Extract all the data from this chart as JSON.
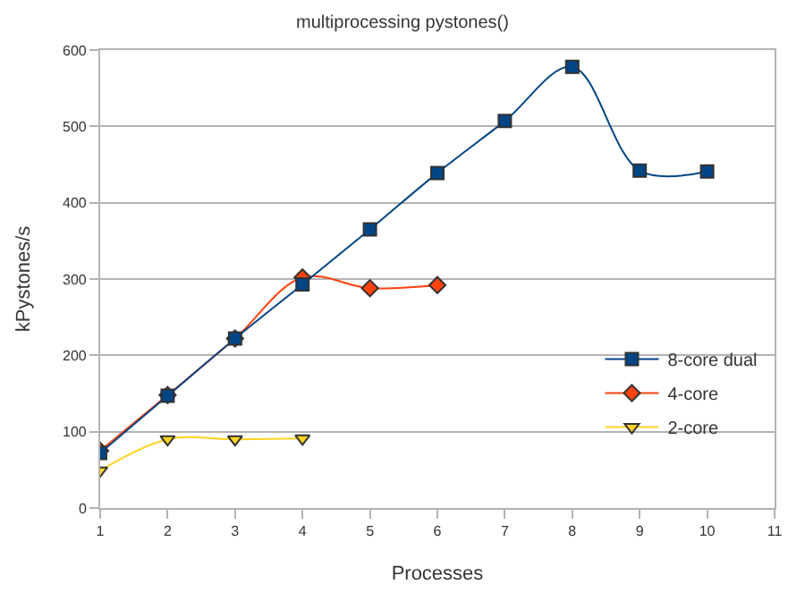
{
  "chart_data": {
    "type": "line",
    "title": "multiprocessing pystones()",
    "xlabel": "Processes",
    "ylabel": "kPystones/s",
    "xlim": [
      1,
      11
    ],
    "xticks": [
      1,
      2,
      3,
      4,
      5,
      6,
      7,
      8,
      9,
      10,
      11
    ],
    "ylim": [
      0,
      600
    ],
    "yticks": [
      0,
      100,
      200,
      300,
      400,
      500,
      600
    ],
    "grid": "y",
    "legend": "bottom right",
    "series": [
      {
        "name": "8-core dual",
        "color": "#004586",
        "marker": "square",
        "x": [
          1,
          2,
          3,
          4,
          5,
          6,
          7,
          8,
          9,
          10
        ],
        "values": [
          72,
          147,
          222,
          293,
          365,
          439,
          507,
          578,
          442,
          441
        ]
      },
      {
        "name": "4-core",
        "color": "#ff420e",
        "marker": "diamond",
        "x": [
          1,
          2,
          3,
          4,
          5,
          6
        ],
        "values": [
          75,
          148,
          222,
          302,
          288,
          292
        ]
      },
      {
        "name": "2-core",
        "color": "#ffd320",
        "marker": "triangle",
        "x": [
          1,
          2,
          3,
          4
        ],
        "values": [
          49,
          90,
          90,
          91
        ]
      }
    ]
  }
}
